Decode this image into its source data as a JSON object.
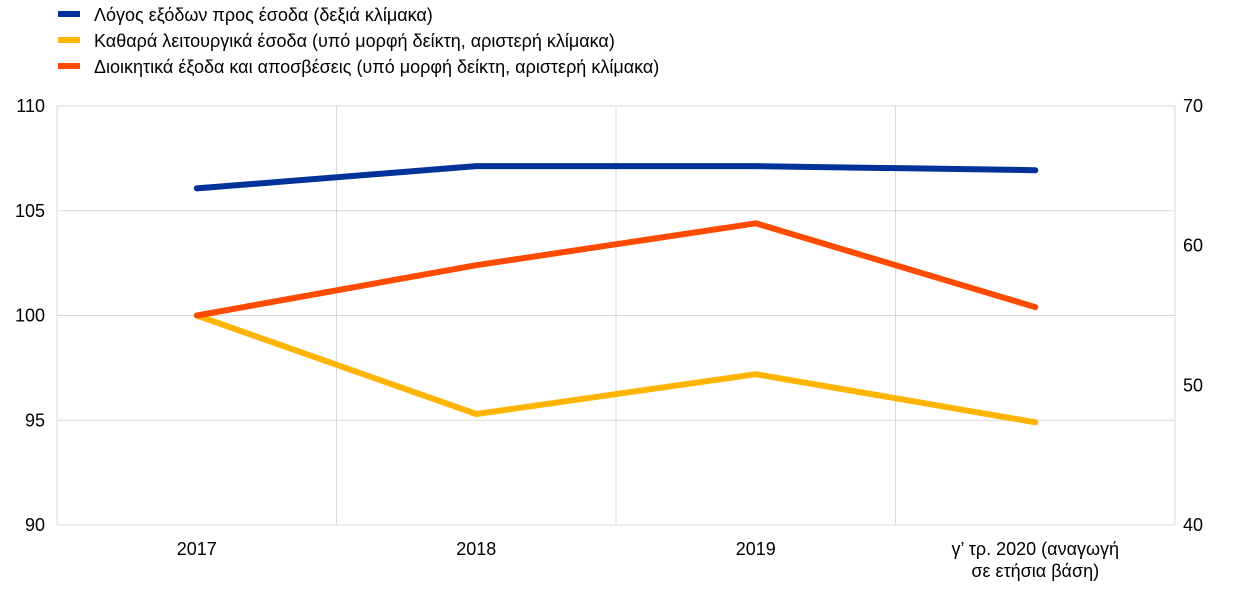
{
  "chart_data": {
    "type": "line",
    "categories": [
      "2017",
      "2018",
      "2019",
      "γ’ τρ. 2020 (αναγωγή σε ετήσια βάση)"
    ],
    "category_lines": [
      [
        "2017"
      ],
      [
        "2018"
      ],
      [
        "2019"
      ],
      [
        "γ’ τρ. 2020 (αναγωγή",
        "σε ετήσια βάση)"
      ]
    ],
    "series": [
      {
        "name": "Λόγος εξόδων προς έσοδα (δεξιά κλίμακα)",
        "axis": "right",
        "color": "#003299",
        "values": [
          64.1,
          65.7,
          65.7,
          65.4
        ]
      },
      {
        "name": "Καθαρά λειτουργικά έσοδα (υπό μορφή δείκτη, αριστερή κλίμακα)",
        "axis": "left",
        "color": "#FFB400",
        "values": [
          100,
          95.3,
          97.2,
          94.9
        ]
      },
      {
        "name": "Διοικητικά έξοδα και αποσβέσεις (υπό μορφή δείκτη, αριστερή κλίμακα)",
        "axis": "left",
        "color": "#FF4B00",
        "values": [
          100,
          102.4,
          104.4,
          100.4
        ]
      }
    ],
    "y_left": {
      "min": 90,
      "max": 110,
      "ticks": [
        "90",
        "95",
        "100",
        "105",
        "110"
      ]
    },
    "y_right": {
      "min": 40,
      "max": 70,
      "ticks": [
        "40",
        "50",
        "60",
        "70"
      ]
    },
    "grid": true,
    "legend_position": "top-left"
  }
}
